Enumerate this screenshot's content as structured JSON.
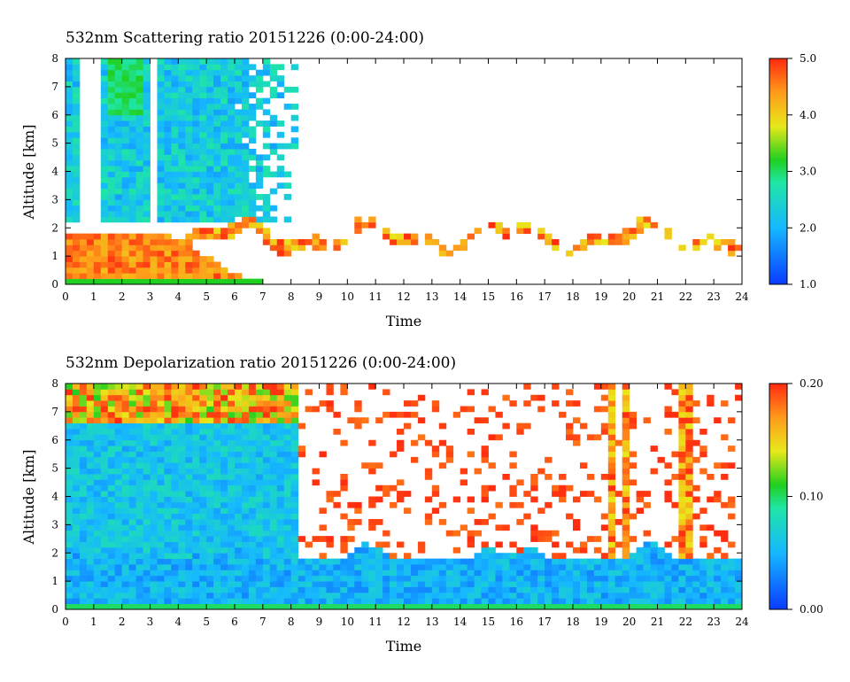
{
  "chart_data": [
    {
      "type": "heatmap",
      "title": "532nm Scattering ratio  20151226 (0:00-24:00)",
      "xlabel": "Time",
      "ylabel": "Altitude [km]",
      "xlim": [
        0,
        24
      ],
      "ylim": [
        0,
        8
      ],
      "x_ticks": [
        "0",
        "1",
        "2",
        "3",
        "4",
        "5",
        "6",
        "7",
        "8",
        "9",
        "10",
        "11",
        "12",
        "13",
        "14",
        "15",
        "16",
        "17",
        "18",
        "19",
        "20",
        "21",
        "22",
        "23",
        "24"
      ],
      "y_ticks": [
        "0",
        "1",
        "2",
        "3",
        "4",
        "5",
        "6",
        "7",
        "8"
      ],
      "colorbar": {
        "min": 1.0,
        "max": 5.0,
        "ticks": [
          "1.0",
          "2.0",
          "3.0",
          "4.0",
          "5.0"
        ]
      },
      "colors": {
        "low": "#0a3cff",
        "mid": "#1fd01f",
        "high": "#ff2a10"
      },
      "features": [
        {
          "feature": "aerosol layer",
          "time": [
            0,
            6.2
          ],
          "altitude": [
            0,
            1.9
          ],
          "value": 4.5
        },
        {
          "feature": "upper scattering",
          "time": [
            0,
            8.3
          ],
          "altitude": [
            2.2,
            8
          ],
          "value": 2.0
        },
        {
          "feature": "cloud base band",
          "time": [
            3.4,
            24
          ],
          "altitude": [
            1.4,
            2.3
          ],
          "value": 4.2
        },
        {
          "feature": "surface line",
          "time": [
            0,
            24
          ],
          "altitude": [
            0.2,
            0.2
          ],
          "value": 5.0
        }
      ]
    },
    {
      "type": "heatmap",
      "title": "532nm Depolarization ratio  20151226 (0:00-24:00)",
      "xlabel": "Time",
      "ylabel": "Altitude [km]",
      "xlim": [
        0,
        24
      ],
      "ylim": [
        0,
        8
      ],
      "x_ticks": [
        "0",
        "1",
        "2",
        "3",
        "4",
        "5",
        "6",
        "7",
        "8",
        "9",
        "10",
        "11",
        "12",
        "13",
        "14",
        "15",
        "16",
        "17",
        "18",
        "19",
        "20",
        "21",
        "22",
        "23",
        "24"
      ],
      "y_ticks": [
        "0",
        "1",
        "2",
        "3",
        "4",
        "5",
        "6",
        "7",
        "8"
      ],
      "colorbar": {
        "min": 0.0,
        "max": 0.2,
        "ticks": [
          "0.00",
          "0.10",
          "0.20"
        ]
      },
      "colors": {
        "low": "#0a3cff",
        "mid": "#1fd01f",
        "high": "#ff2a10"
      },
      "features": [
        {
          "feature": "boundary layer",
          "time": [
            0,
            24
          ],
          "altitude": [
            0,
            1.9
          ],
          "value": 0.04
        },
        {
          "feature": "upper layer",
          "time": [
            0,
            8.3
          ],
          "altitude": [
            2,
            8
          ],
          "value": 0.06
        },
        {
          "feature": "top depolarization",
          "time": [
            0,
            8.3
          ],
          "altitude": [
            6.5,
            8
          ],
          "value": 0.15
        },
        {
          "feature": "scattered high values",
          "time": [
            8.3,
            24
          ],
          "altitude": [
            2.2,
            8
          ],
          "value": 0.18
        }
      ]
    }
  ]
}
